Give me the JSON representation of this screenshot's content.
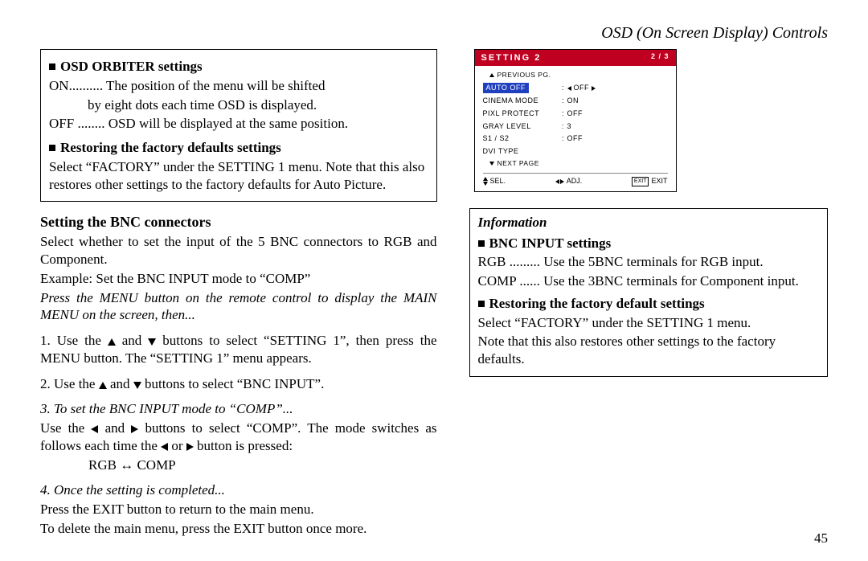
{
  "header": "OSD (On Screen Display) Controls",
  "page_number": "45",
  "left_box": {
    "h1": "OSD ORBITER settings",
    "l1a": "ON",
    "l1b": "The position of the menu will be shifted",
    "l1c": "by eight dots each time OSD is displayed.",
    "l2a": "OFF",
    "l2b": "OSD will be displayed at the same position.",
    "h2": "Restoring the factory defaults settings",
    "l3": "Select “FACTORY” under the SETTING 1 menu. Note that this also restores other settings to the factory defaults for Auto Picture."
  },
  "bnc": {
    "title": "Setting the BNC connectors",
    "p1": "Select whether to set the input of the 5 BNC connectors to RGB and Component.",
    "p2": "Example: Set the BNC INPUT mode to “COMP”",
    "p3": "Press the MENU button on the remote control to display the MAIN MENU on the screen, then...",
    "s1a": "1. Use the ",
    "s1b": " and ",
    "s1c": " buttons to select “SETTING 1”, then press the MENU button. The “SETTING 1” menu appears.",
    "s2a": "2. Use the ",
    "s2b": " and ",
    "s2c": " buttons to select “BNC INPUT”.",
    "s3": "3. To set the BNC INPUT mode to “COMP”...",
    "s3ba": "Use the ",
    "s3bb": " and ",
    "s3bc": " buttons to select “COMP”. The mode switches as follows each time the ",
    "s3bd": " or ",
    "s3be": " button is pressed:",
    "s3c": "RGB ↔ COMP",
    "s4": "4. Once the setting is completed...",
    "s4b": "Press the EXIT button to return to the main menu.",
    "s4c": "To delete the main menu, press the EXIT button once more."
  },
  "osd": {
    "title": "SETTING 2",
    "page": "2 / 3",
    "prev": "PREVIOUS PG.",
    "next": "NEXT PAGE",
    "rows": [
      {
        "label": "AUTO OFF",
        "val": "OFF",
        "sel": true,
        "arrows": true
      },
      {
        "label": "CINEMA MODE",
        "val": "ON"
      },
      {
        "label": "PIXL PROTECT",
        "val": "OFF"
      },
      {
        "label": "GRAY LEVEL",
        "val": "3"
      },
      {
        "label": "S1 / S2",
        "val": "OFF"
      },
      {
        "label": "DVI TYPE",
        "val": ""
      }
    ],
    "footer": {
      "sel": "SEL.",
      "adj": "ADJ.",
      "exit": "EXIT"
    }
  },
  "right_box": {
    "info": "Information",
    "h1": "BNC INPUT settings",
    "l1a": "RGB",
    "l1b": "Use the 5BNC terminals for RGB input.",
    "l2a": "COMP",
    "l2b": "Use the 3BNC terminals for Component input.",
    "h2": "Restoring the factory default settings",
    "l3": "Select “FACTORY” under the SETTING 1 menu.",
    "l4": "Note that this also restores other settings to the factory defaults."
  }
}
